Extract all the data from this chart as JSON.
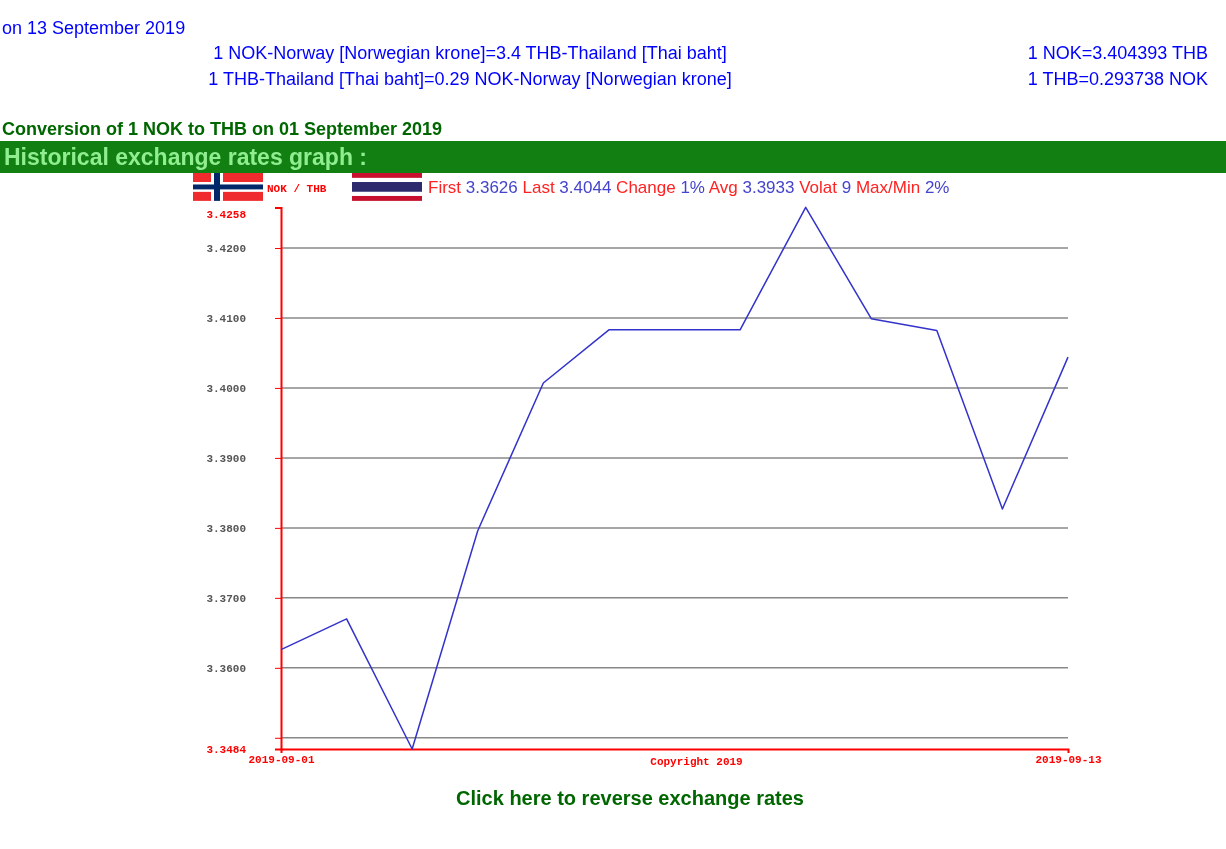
{
  "chart_data": {
    "type": "line",
    "title": "Historical exchange rates graph :",
    "annotations": [
      "on 13 September 2019",
      "1 NOK-Norway [Norwegian krone]=3.4 THB-Thailand [Thai baht]",
      "1 NOK=3.404393 THB",
      "1 THB-Thailand [Thai baht]=0.29 NOK-Norway [Norwegian krone]",
      "1 THB=0.293738 NOK",
      "Conversion of 1 NOK to THB on 01 September 2019",
      "NOK / THB",
      "First 3.3626 Last 3.4044 Change 1% Avg 3.3933 Volat 9 Max/Min 2%",
      "Copyright 2019",
      "Click here to reverse exchange rates"
    ],
    "x": [
      "2019-09-01",
      "2019-09-02",
      "2019-09-03",
      "2019-09-04",
      "2019-09-05",
      "2019-09-06",
      "2019-09-07",
      "2019-09-08",
      "2019-09-09",
      "2019-09-10",
      "2019-09-11",
      "2019-09-12",
      "2019-09-13"
    ],
    "series": [
      {
        "color": "#3333cc",
        "values": [
          3.3626,
          3.367,
          3.3484,
          3.3796,
          3.4007,
          3.4083,
          3.4083,
          3.4083,
          3.4258,
          3.4099,
          3.4082,
          3.3827,
          3.4044
        ]
      }
    ],
    "xlim": [
      "2019-09-01",
      "2019-09-13"
    ],
    "xticks": [
      {
        "value": "2019-09-01",
        "label": "2019-09-01"
      },
      {
        "value": "2019-09-13",
        "label": "2019-09-13"
      }
    ],
    "ylim": [
      3.3484,
      3.4258
    ],
    "yticks": [
      3.3484,
      {
        "value": 3.35,
        "label": null
      },
      {
        "value": 3.36,
        "label": "3.3600"
      },
      {
        "value": 3.37,
        "label": "3.3700"
      },
      {
        "value": 3.38,
        "label": "3.3800"
      },
      {
        "value": 3.39,
        "label": "3.3900"
      },
      {
        "value": 3.4,
        "label": "3.4000"
      },
      {
        "value": 3.41,
        "label": "3.4100"
      },
      {
        "value": 3.42,
        "label": "3.4200"
      },
      3.4258
    ],
    "grid": "y",
    "marker": "none",
    "line_style": "solid"
  }
}
